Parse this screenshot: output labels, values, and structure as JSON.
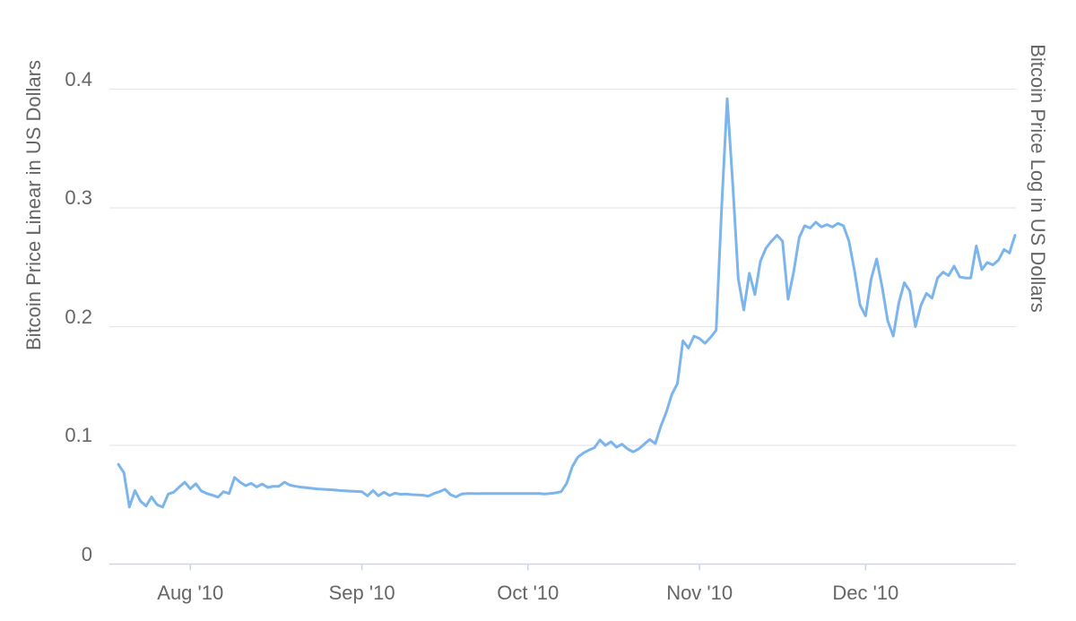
{
  "chart": {
    "left_axis": {
      "title": "Bitcoin Price Linear in US Dollars",
      "tick_labels": [
        "0.4",
        "0.3",
        "0.2",
        "0.1",
        "0"
      ],
      "tick_values": [
        0.4,
        0.3,
        0.2,
        0.1,
        0
      ]
    },
    "right_axis": {
      "title": "Bitcoin Price Log in US Dollars"
    },
    "x_axis": {
      "tick_labels": [
        "Aug '10",
        "Sep '10",
        "Oct '10",
        "Nov '10",
        "Dec '10"
      ]
    },
    "colors": {
      "series_line": "#7cb5ec",
      "gridline": "#e6e6e6",
      "axis_line": "#ccd6eb",
      "label_text": "#666666",
      "background": "#ffffff"
    }
  },
  "chart_data": {
    "type": "line",
    "title": "",
    "x_start_date": "2010-07-19",
    "x_end_date": "2010-12-28",
    "x_interval": "daily",
    "x_tick_labels": [
      "Aug '10",
      "Sep '10",
      "Oct '10",
      "Nov '10",
      "Dec '10"
    ],
    "x_tick_indices": [
      13,
      44,
      74,
      105,
      135
    ],
    "ylabel_left": "Bitcoin Price Linear in US Dollars",
    "ylabel_right": "Bitcoin Price Log in US Dollars",
    "y_ticks": [
      0,
      0.1,
      0.2,
      0.3,
      0.4
    ],
    "ylim": [
      0,
      0.44
    ],
    "grid": "horizontal-only",
    "legend": "none",
    "series": [
      {
        "name": "bitcoin-price-usd",
        "values": [
          0.084,
          0.077,
          0.048,
          0.062,
          0.053,
          0.049,
          0.0565,
          0.05,
          0.048,
          0.059,
          0.0605,
          0.065,
          0.069,
          0.0635,
          0.0677,
          0.0615,
          0.0594,
          0.058,
          0.0564,
          0.061,
          0.0594,
          0.073,
          0.069,
          0.066,
          0.068,
          0.065,
          0.0675,
          0.0645,
          0.0655,
          0.0655,
          0.069,
          0.0665,
          0.0655,
          0.0648,
          0.0643,
          0.0638,
          0.0633,
          0.063,
          0.0627,
          0.0624,
          0.062,
          0.0617,
          0.0614,
          0.0612,
          0.061,
          0.0575,
          0.062,
          0.0575,
          0.0605,
          0.0578,
          0.0597,
          0.0588,
          0.059,
          0.0585,
          0.0583,
          0.058,
          0.0572,
          0.0595,
          0.061,
          0.063,
          0.0585,
          0.0565,
          0.059,
          0.0595,
          0.0595,
          0.0593,
          0.0595,
          0.0594,
          0.0595,
          0.0595,
          0.0594,
          0.0595,
          0.0595,
          0.0595,
          0.0595,
          0.0595,
          0.0595,
          0.059,
          0.0595,
          0.06,
          0.061,
          0.068,
          0.082,
          0.09,
          0.0935,
          0.096,
          0.098,
          0.1045,
          0.1,
          0.103,
          0.0985,
          0.101,
          0.097,
          0.0945,
          0.097,
          0.101,
          0.105,
          0.1015,
          0.116,
          0.128,
          0.143,
          0.152,
          0.188,
          0.182,
          0.192,
          0.19,
          0.186,
          0.191,
          0.197,
          0.3,
          0.392,
          0.32,
          0.24,
          0.214,
          0.245,
          0.227,
          0.255,
          0.266,
          0.272,
          0.277,
          0.272,
          0.223,
          0.246,
          0.275,
          0.285,
          0.283,
          0.288,
          0.284,
          0.286,
          0.284,
          0.287,
          0.285,
          0.272,
          0.247,
          0.218,
          0.209,
          0.24,
          0.257,
          0.233,
          0.205,
          0.192,
          0.22,
          0.237,
          0.23,
          0.2,
          0.218,
          0.228,
          0.224,
          0.241,
          0.246,
          0.243,
          0.251,
          0.242,
          0.241,
          0.241,
          0.268,
          0.248,
          0.254,
          0.252,
          0.256,
          0.265,
          0.262,
          0.277
        ]
      }
    ]
  }
}
